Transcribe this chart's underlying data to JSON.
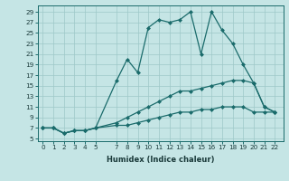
{
  "xlabel": "Humidex (Indice chaleur)",
  "bg_color": "#c5e5e5",
  "grid_color": "#9ec8c8",
  "line_color": "#1a6b6b",
  "ylim": [
    4.5,
    30.2
  ],
  "xlim": [
    -0.5,
    22.8
  ],
  "yticks": [
    5,
    7,
    9,
    11,
    13,
    15,
    17,
    19,
    21,
    23,
    25,
    27,
    29
  ],
  "xticks": [
    0,
    1,
    2,
    3,
    4,
    5,
    7,
    8,
    9,
    10,
    11,
    12,
    13,
    14,
    15,
    16,
    17,
    18,
    19,
    20,
    21,
    22
  ],
  "line1_x": [
    0,
    1,
    2,
    3,
    4,
    5,
    7,
    8,
    9,
    10,
    11,
    12,
    13,
    14,
    15,
    16,
    17,
    18,
    19,
    20,
    21,
    22
  ],
  "line1_y": [
    7,
    7,
    6,
    6.5,
    6.5,
    7,
    7.5,
    7.5,
    8,
    8.5,
    9,
    9.5,
    10,
    10,
    10.5,
    10.5,
    11,
    11,
    11,
    10,
    10,
    10
  ],
  "line2_x": [
    0,
    1,
    2,
    3,
    4,
    5,
    7,
    8,
    9,
    10,
    11,
    12,
    13,
    14,
    15,
    16,
    17,
    18,
    19,
    20,
    21,
    22
  ],
  "line2_y": [
    7,
    7,
    6,
    6.5,
    6.5,
    7,
    8,
    9,
    10,
    11,
    12,
    13,
    14,
    14,
    14.5,
    15,
    15.5,
    16,
    16,
    15.5,
    11,
    10
  ],
  "line3_x": [
    0,
    1,
    2,
    3,
    4,
    5,
    7,
    8,
    9,
    10,
    11,
    12,
    13,
    14,
    15,
    16,
    17,
    18,
    19,
    20,
    21,
    22
  ],
  "line3_y": [
    7,
    7,
    6,
    6.5,
    6.5,
    7,
    16,
    20,
    17.5,
    26,
    27.5,
    27,
    27.5,
    29,
    21,
    29,
    25.5,
    23,
    19,
    15.5,
    11,
    10
  ],
  "marker": "D",
  "marker_size": 2.0,
  "linewidth": 0.9,
  "tick_fontsize": 5.2,
  "xlabel_fontsize": 6.0
}
